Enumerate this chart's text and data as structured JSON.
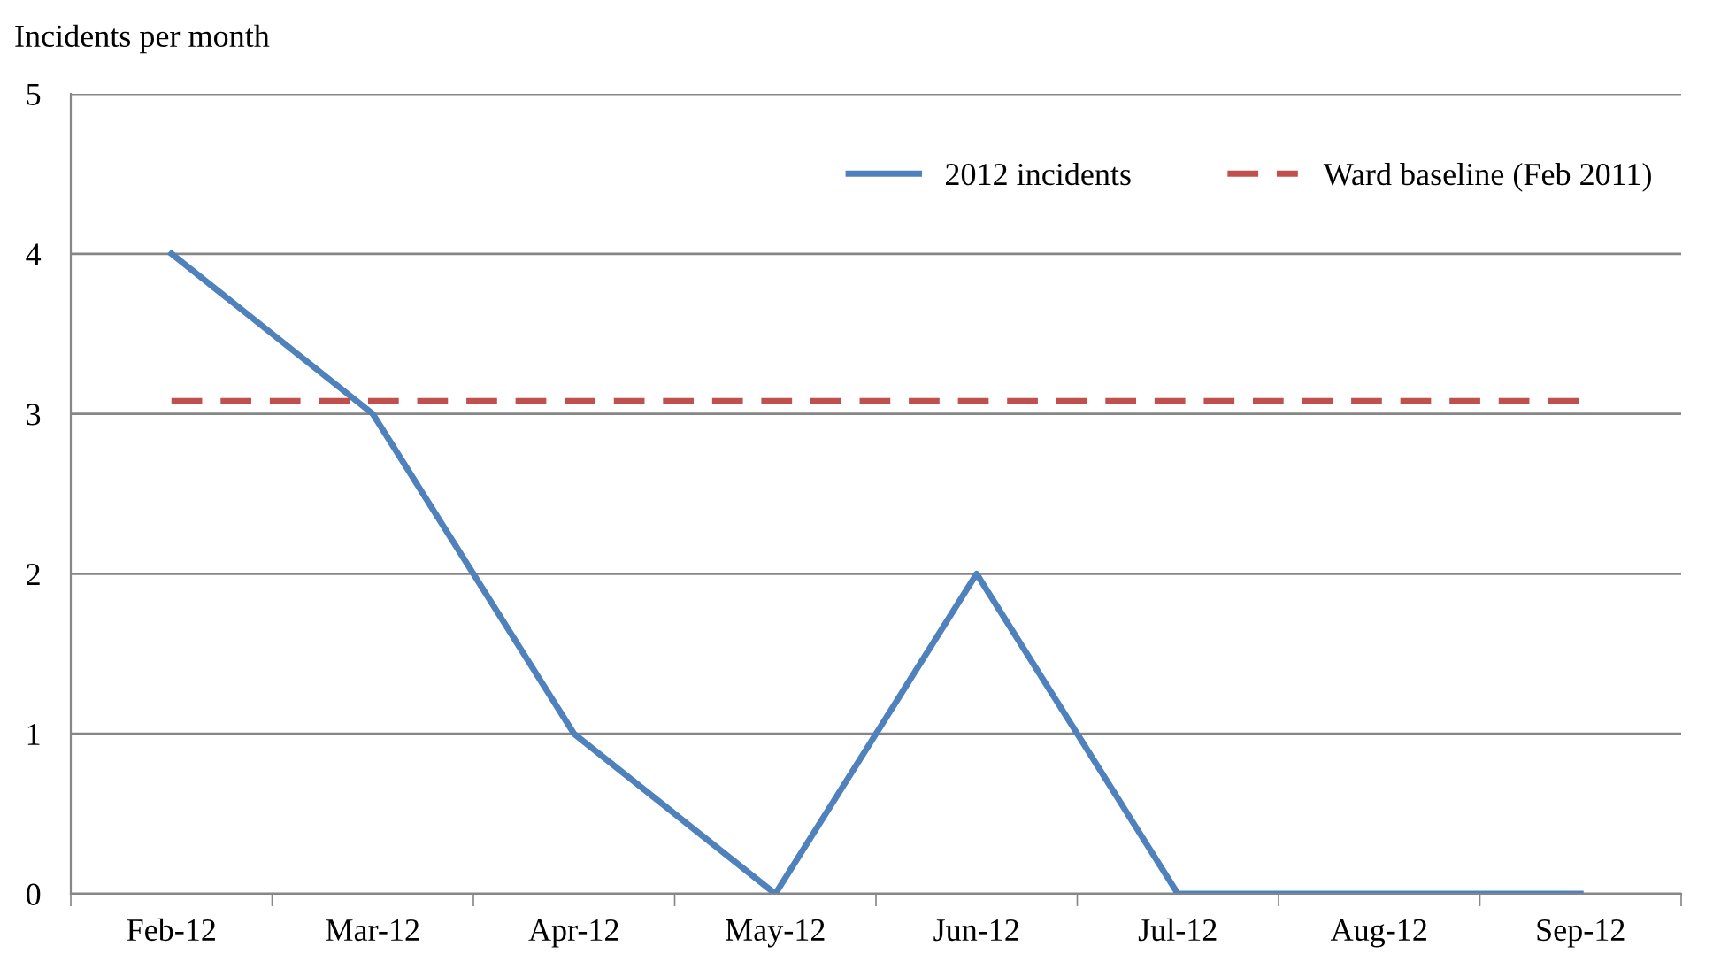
{
  "chart_data": {
    "type": "line",
    "ylabel": "Incidents per month",
    "categories": [
      "Feb-12",
      "Mar-12",
      "Apr-12",
      "May-12",
      "Jun-12",
      "Jul-12",
      "Aug-12",
      "Sep-12"
    ],
    "series": [
      {
        "name": "2012 incidents",
        "color": "#4f81bd",
        "values": [
          4,
          3,
          1,
          0,
          2,
          0,
          0,
          0
        ],
        "line_style": "solid"
      },
      {
        "name": "Ward baseline (Feb 2011)",
        "color": "#c0504d",
        "values": [
          3.08,
          3.08,
          3.08,
          3.08,
          3.08,
          3.08,
          3.08,
          3.08
        ],
        "line_style": "dashed"
      }
    ],
    "ylim": [
      0,
      5
    ],
    "yticks": [
      0,
      1,
      2,
      3,
      4,
      5
    ],
    "grid": "y",
    "legend": "top right",
    "marker": "none"
  }
}
